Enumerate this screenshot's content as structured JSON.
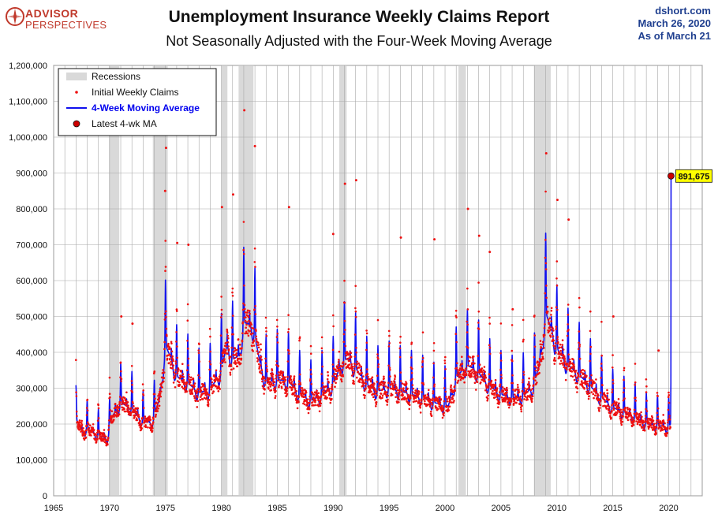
{
  "header": {
    "logo_line1": "ADVISOR",
    "logo_line2": "PERSPECTIVES",
    "title": "Unemployment Insurance Weekly Claims Report",
    "subtitle": "Not Seasonally Adjusted with the Four-Week Moving Average",
    "source_line1": "dshort.com",
    "source_line2": "March 26, 2020",
    "source_line3": "As of March 21"
  },
  "colors": {
    "ma_line": "#1010ee",
    "claims_dots": "#ee1111",
    "recession_band": "#d9d9d9",
    "grid": "#a8a8a8",
    "callout_bg": "#ffff00",
    "brand_red": "#c0392b",
    "source_blue": "#1f3f8f"
  },
  "chart_data": {
    "type": "line",
    "title": "Unemployment Insurance Weekly Claims Report",
    "subtitle": "Not Seasonally Adjusted with the Four-Week Moving Average",
    "xlim": [
      1965,
      2023
    ],
    "ylim": [
      0,
      1200000
    ],
    "x_ticks": [
      1965,
      1970,
      1975,
      1980,
      1985,
      1990,
      1995,
      2000,
      2005,
      2010,
      2015,
      2020
    ],
    "y_ticks": [
      0,
      100000,
      200000,
      300000,
      400000,
      500000,
      600000,
      700000,
      800000,
      900000,
      1000000,
      1100000,
      1200000
    ],
    "y_tick_labels": [
      "0",
      "100,000",
      "200,000",
      "300,000",
      "400,000",
      "500,000",
      "600,000",
      "700,000",
      "800,000",
      "900,000",
      "1,000,000",
      "1,100,000",
      "1,200,000"
    ],
    "grid": true,
    "legend_position": "top-left",
    "legend": [
      {
        "key": "recessions",
        "label": "Recessions"
      },
      {
        "key": "claims",
        "label": "Initial Weekly Claims"
      },
      {
        "key": "ma",
        "label": "4-Week Moving Average"
      },
      {
        "key": "latest",
        "label": "Latest 4-wk MA"
      }
    ],
    "recessions": [
      [
        1969.95,
        1970.87
      ],
      [
        1973.87,
        1975.2
      ],
      [
        1980.0,
        1980.54
      ],
      [
        1981.54,
        1982.87
      ],
      [
        1990.54,
        1991.2
      ],
      [
        2001.2,
        2001.87
      ],
      [
        2007.95,
        2009.45
      ]
    ],
    "series": [
      {
        "name": "4-Week Moving Average",
        "baseline": [
          [
            1967.0,
            235000
          ],
          [
            1967.6,
            195000
          ],
          [
            1968.0,
            205000
          ],
          [
            1969.0,
            185000
          ],
          [
            1969.8,
            175000
          ],
          [
            1970.2,
            240000
          ],
          [
            1971.0,
            285000
          ],
          [
            1972.0,
            265000
          ],
          [
            1973.0,
            225000
          ],
          [
            1973.8,
            225000
          ],
          [
            1974.5,
            300000
          ],
          [
            1975.0,
            460000
          ],
          [
            1975.5,
            420000
          ],
          [
            1976.0,
            365000
          ],
          [
            1977.0,
            345000
          ],
          [
            1978.0,
            315000
          ],
          [
            1979.0,
            325000
          ],
          [
            1979.9,
            375000
          ],
          [
            1980.5,
            460000
          ],
          [
            1981.0,
            415000
          ],
          [
            1981.6,
            430000
          ],
          [
            1982.0,
            530000
          ],
          [
            1982.8,
            520000
          ],
          [
            1983.5,
            400000
          ],
          [
            1984.0,
            345000
          ],
          [
            1985.0,
            355000
          ],
          [
            1986.0,
            350000
          ],
          [
            1987.0,
            310000
          ],
          [
            1988.0,
            290000
          ],
          [
            1989.0,
            310000
          ],
          [
            1990.0,
            340000
          ],
          [
            1990.8,
            410000
          ],
          [
            1991.3,
            420000
          ],
          [
            1992.0,
            390000
          ],
          [
            1993.0,
            340000
          ],
          [
            1994.0,
            320000
          ],
          [
            1995.0,
            330000
          ],
          [
            1996.0,
            320000
          ],
          [
            1997.0,
            310000
          ],
          [
            1998.0,
            300000
          ],
          [
            1999.0,
            285000
          ],
          [
            2000.3,
            275000
          ],
          [
            2001.0,
            360000
          ],
          [
            2001.9,
            400000
          ],
          [
            2002.5,
            390000
          ],
          [
            2003.0,
            375000
          ],
          [
            2004.0,
            335000
          ],
          [
            2005.0,
            310000
          ],
          [
            2006.0,
            300000
          ],
          [
            2007.0,
            305000
          ],
          [
            2007.9,
            335000
          ],
          [
            2008.5,
            410000
          ],
          [
            2009.0,
            560000
          ],
          [
            2009.6,
            500000
          ],
          [
            2010.0,
            450000
          ],
          [
            2011.0,
            400000
          ],
          [
            2012.0,
            370000
          ],
          [
            2013.0,
            335000
          ],
          [
            2014.0,
            300000
          ],
          [
            2015.0,
            270000
          ],
          [
            2016.0,
            255000
          ],
          [
            2017.0,
            240000
          ],
          [
            2018.0,
            220000
          ],
          [
            2019.0,
            215000
          ],
          [
            2020.0,
            210000
          ],
          [
            2020.17,
            220000
          ]
        ],
        "seasonal_amplitude": 0.25,
        "final_spike": [
          [
            2020.18,
            225000
          ],
          [
            2020.2,
            315000
          ],
          [
            2020.21,
            891675
          ]
        ]
      },
      {
        "name": "Initial Weekly Claims",
        "notable_points": [
          [
            1975.05,
            970000
          ],
          [
            1974.97,
            850000
          ],
          [
            1982.05,
            1075000
          ],
          [
            1983.0,
            975000
          ],
          [
            1981.05,
            840000
          ],
          [
            1980.05,
            805000
          ],
          [
            1991.05,
            870000
          ],
          [
            1992.05,
            880000
          ],
          [
            1986.05,
            805000
          ],
          [
            1990.0,
            730000
          ],
          [
            1996.05,
            720000
          ],
          [
            1999.05,
            715000
          ],
          [
            2002.05,
            800000
          ],
          [
            2009.05,
            955000
          ],
          [
            2010.05,
            825000
          ],
          [
            2003.05,
            725000
          ],
          [
            2011.05,
            770000
          ],
          [
            2015.05,
            500000
          ],
          [
            2019.1,
            405000
          ],
          [
            1971.05,
            500000
          ],
          [
            1972.05,
            480000
          ],
          [
            2004.0,
            680000
          ],
          [
            2006.05,
            520000
          ],
          [
            1976.05,
            705000
          ],
          [
            1977.05,
            700000
          ]
        ]
      }
    ],
    "latest_point": {
      "x": 2020.21,
      "y": 891675,
      "label": "891,675"
    }
  }
}
